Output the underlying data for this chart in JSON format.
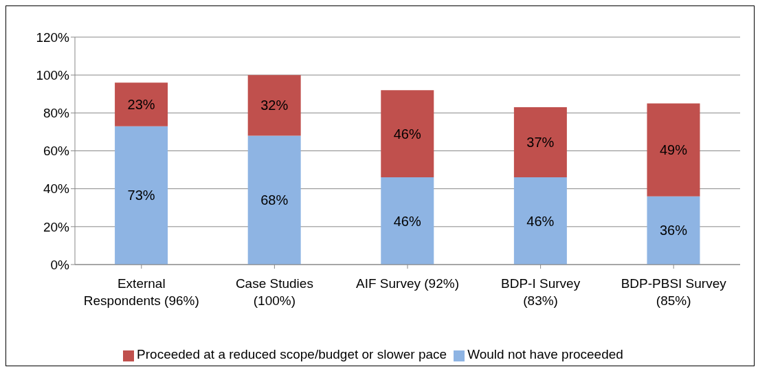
{
  "chart_data": {
    "type": "bar",
    "stacked": true,
    "categories": [
      "External Respondents (96%)",
      "Case Studies (100%)",
      "AIF Survey (92%)",
      "BDP-I Survey (83%)",
      "BDP-PBSI Survey (85%)"
    ],
    "series": [
      {
        "name": "Would not have proceeded",
        "color": "#8eb4e3",
        "values": [
          73,
          68,
          46,
          46,
          36
        ],
        "value_labels": [
          "73%",
          "68%",
          "46%",
          "46%",
          "36%"
        ]
      },
      {
        "name": "Proceeded at a reduced scope/budget or slower pace",
        "color": "#c0504d",
        "values": [
          23,
          32,
          46,
          37,
          49
        ],
        "value_labels": [
          "23%",
          "32%",
          "46%",
          "37%",
          "49%"
        ]
      }
    ],
    "ylim": [
      0,
      120
    ],
    "yticks": [
      {
        "value": 0,
        "label": "0%"
      },
      {
        "value": 20,
        "label": "20%"
      },
      {
        "value": 40,
        "label": "40%"
      },
      {
        "value": 60,
        "label": "60%"
      },
      {
        "value": 80,
        "label": "80%"
      },
      {
        "value": 100,
        "label": "100%"
      },
      {
        "value": 120,
        "label": "120%"
      }
    ],
    "grid": "y",
    "legend": "bottom"
  }
}
